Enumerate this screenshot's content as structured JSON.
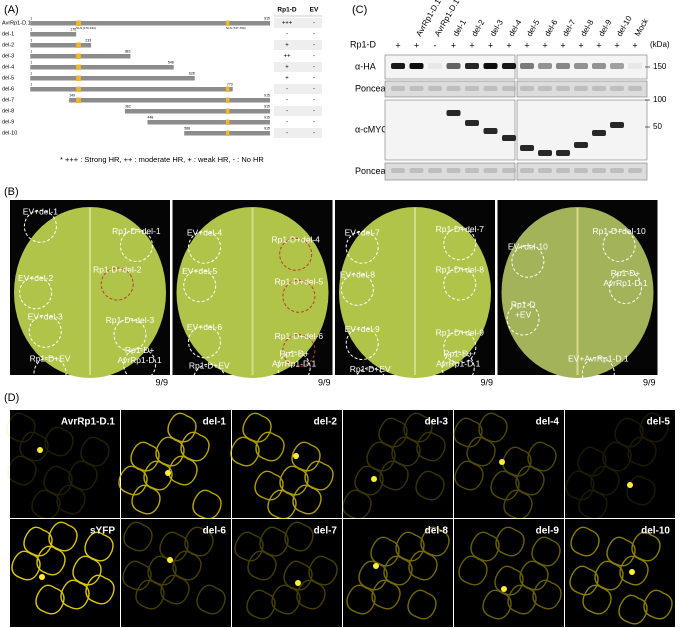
{
  "panel_a": {
    "label": "(A)",
    "columns": [
      "Rp1-D",
      "EV"
    ],
    "motifs": [
      {
        "label": "NLS (176-194)",
        "start": 176,
        "end": 194
      },
      {
        "label": "NLS (747-760)",
        "start": 747,
        "end": 760
      }
    ],
    "rows": [
      {
        "name": "AvrRp1-D.1",
        "start": 1,
        "end": 915,
        "rp1d": "+++",
        "ev": "-"
      },
      {
        "name": "del-1",
        "start": 1,
        "end": 176,
        "rp1d": "-",
        "ev": "-"
      },
      {
        "name": "del-2",
        "start": 1,
        "end": 233,
        "rp1d": "+",
        "ev": "-"
      },
      {
        "name": "del-3",
        "start": 1,
        "end": 383,
        "rp1d": "++",
        "ev": "-"
      },
      {
        "name": "del-4",
        "start": 1,
        "end": 548,
        "rp1d": "+",
        "ev": "-"
      },
      {
        "name": "del-5",
        "start": 1,
        "end": 628,
        "rp1d": "+",
        "ev": "-"
      },
      {
        "name": "del-6",
        "start": 1,
        "end": 773,
        "rp1d": "-",
        "ev": "-"
      },
      {
        "name": "del-7",
        "start": 149,
        "end": 915,
        "rp1d": "-",
        "ev": "-"
      },
      {
        "name": "del-8",
        "start": 362,
        "end": 915,
        "rp1d": "-",
        "ev": "-"
      },
      {
        "name": "del-9",
        "start": 448,
        "end": 915,
        "rp1d": "-",
        "ev": "-"
      },
      {
        "name": "del-10",
        "start": 588,
        "end": 915,
        "rp1d": "-",
        "ev": "-"
      }
    ],
    "footnote": "* +++ : Strong HR, ++ : moderate HR, + : weak HR, - : No HR"
  },
  "panel_b": {
    "label": "(B)",
    "leaves": [
      {
        "score": "9/9",
        "labels": [
          {
            "lines": [
              "EV+del-1"
            ]
          },
          {
            "lines": [
              "Rp1-D+del-1"
            ]
          },
          {
            "lines": [
              "EV+del-2"
            ]
          },
          {
            "lines": [
              "Rp1-D+del-2"
            ]
          },
          {
            "lines": [
              "EV+del-3"
            ]
          },
          {
            "lines": [
              "Rp1-D+del-3"
            ]
          },
          {
            "lines": [
              "Rp1-D+EV"
            ]
          },
          {
            "lines": [
              "Rp1-D+",
              "AvrRp1-D.1"
            ]
          }
        ]
      },
      {
        "score": "9/9",
        "labels": [
          {
            "lines": [
              "EV+del-4"
            ]
          },
          {
            "lines": [
              "Rp1-D+del-4"
            ]
          },
          {
            "lines": [
              "EV+del-5"
            ]
          },
          {
            "lines": [
              "Rp1-D+del-5"
            ]
          },
          {
            "lines": [
              "EV+del-6"
            ]
          },
          {
            "lines": [
              "Rp1-D+del-6"
            ]
          },
          {
            "lines": [
              "Rp1-D+EV"
            ]
          },
          {
            "lines": [
              "Rp1-D+",
              "AvrRp1-D.1"
            ]
          }
        ]
      },
      {
        "score": "9/9",
        "labels": [
          {
            "lines": [
              "EV+del-7"
            ]
          },
          {
            "lines": [
              "Rp1-D+del-7"
            ]
          },
          {
            "lines": [
              "EV+del-8"
            ]
          },
          {
            "lines": [
              "Rp1-D+del-8"
            ]
          },
          {
            "lines": [
              "EV+del-9"
            ]
          },
          {
            "lines": [
              "Rp1-D+del-9"
            ]
          },
          {
            "lines": [
              "Rp1-D+EV"
            ]
          },
          {
            "lines": [
              "Rp1-D+",
              "AvrRp1-D.1"
            ]
          }
        ]
      },
      {
        "score": "9/9",
        "labels": [
          {
            "lines": [
              "EV+del-10"
            ]
          },
          {
            "lines": [
              "Rp1-D+del-10"
            ]
          },
          {
            "lines": [
              "Rp1-D+",
              "AvrRp1-D.1"
            ]
          },
          {
            "lines": [
              "Rp1-D",
              "+EV"
            ]
          },
          {
            "lines": [
              "EV+AvrRp1-D.1"
            ]
          }
        ]
      }
    ]
  },
  "panel_c": {
    "label": "(C)",
    "row_label": "Rp1-D",
    "unit": "(kDa)",
    "lanes_left": [
      {
        "name": null,
        "rp1d": "+"
      },
      {
        "name": "AvrRp1-D.1",
        "rp1d": "+"
      },
      {
        "name": "AvrRp1-D.1",
        "rp1d": "-"
      },
      {
        "name": "del-1",
        "rp1d": "+"
      },
      {
        "name": "del-2",
        "rp1d": "+"
      },
      {
        "name": "del-3",
        "rp1d": "+"
      },
      {
        "name": "del-4",
        "rp1d": "+"
      }
    ],
    "lanes_right": [
      {
        "name": "del-5",
        "rp1d": "+"
      },
      {
        "name": "del-6",
        "rp1d": "+"
      },
      {
        "name": "del-7",
        "rp1d": "+"
      },
      {
        "name": "del-8",
        "rp1d": "+"
      },
      {
        "name": "del-9",
        "rp1d": "+"
      },
      {
        "name": "del-10",
        "rp1d": "+"
      },
      {
        "name": "Mock",
        "rp1d": "+"
      }
    ],
    "blots": [
      {
        "name": "α-HA",
        "markers": [
          "150"
        ]
      },
      {
        "name": "Ponceau",
        "markers": []
      },
      {
        "name": "α-cMYC",
        "markers": [
          "100",
          "50"
        ]
      },
      {
        "name": "Ponceau",
        "markers": []
      }
    ]
  },
  "panel_d": {
    "label": "(D)",
    "images": [
      "AvrRp1-D.1",
      "del-1",
      "del-2",
      "del-3",
      "del-4",
      "del-5",
      "sYFP",
      "del-6",
      "del-7",
      "del-8",
      "del-9",
      "del-10"
    ]
  }
}
